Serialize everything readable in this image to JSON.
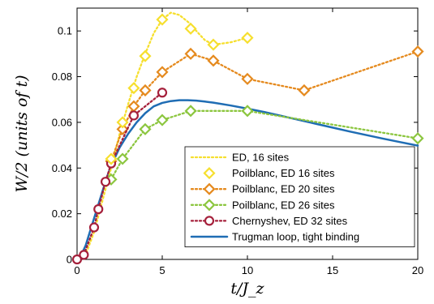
{
  "chart_data": {
    "type": "line",
    "title": "",
    "xlabel": "t/J_z",
    "ylabel": "W/2 (units of t)",
    "xlim": [
      0,
      20
    ],
    "ylim": [
      0,
      0.11
    ],
    "xticks": [
      0,
      5,
      10,
      15,
      20
    ],
    "yticks": [
      0,
      0.02,
      0.04,
      0.06,
      0.08,
      0.1
    ],
    "xtick_labels": [
      "0",
      "5",
      "10",
      "15",
      "20"
    ],
    "ytick_labels": [
      "0",
      "0.02",
      "0.04",
      "0.06",
      "0.08",
      "0.1"
    ],
    "grid": false,
    "legend_position": "bottom-right",
    "series": [
      {
        "name": "ED, 16 sites",
        "style": "dotted",
        "marker": "none",
        "color": "#f6df2e",
        "x": [
          0,
          0.5,
          1,
          1.5,
          2,
          2.5,
          3,
          3.5,
          4,
          4.5,
          5,
          5.5,
          6,
          6.67,
          7,
          7.5,
          8,
          9,
          10
        ],
        "y": [
          0,
          0.002,
          0.012,
          0.026,
          0.04,
          0.055,
          0.068,
          0.08,
          0.09,
          0.099,
          0.105,
          0.108,
          0.107,
          0.103,
          0.1,
          0.096,
          0.094,
          0.095,
          0.097
        ]
      },
      {
        "name": "Poilblanc, ED 16 sites",
        "style": "none",
        "marker": "diamond",
        "color": "#f6df2e",
        "x": [
          2,
          2.67,
          3.33,
          4,
          5,
          6.67,
          8,
          10
        ],
        "y": [
          0.044,
          0.06,
          0.075,
          0.089,
          0.105,
          0.101,
          0.094,
          0.097
        ]
      },
      {
        "name": "Poilblanc, ED 20 sites",
        "style": "dotted",
        "marker": "diamond",
        "color": "#e58a1e",
        "x": [
          2,
          2.67,
          3.33,
          4,
          5,
          6.67,
          8,
          10,
          13.33,
          20
        ],
        "y": [
          0.043,
          0.057,
          0.067,
          0.074,
          0.082,
          0.09,
          0.087,
          0.079,
          0.074,
          0.091
        ]
      },
      {
        "name": "Poilblanc, ED 26 sites",
        "style": "dotted",
        "marker": "diamond",
        "color": "#8cc63f",
        "x": [
          2,
          2.67,
          4,
          5,
          6.67,
          10,
          20
        ],
        "y": [
          0.035,
          0.044,
          0.057,
          0.061,
          0.065,
          0.065,
          0.053
        ]
      },
      {
        "name": "Chernyshev, ED 32 sites",
        "style": "dotted",
        "marker": "circle",
        "color": "#a5203b",
        "x": [
          0,
          0.4,
          1,
          1.25,
          1.67,
          2,
          3.33,
          5
        ],
        "y": [
          0,
          0.002,
          0.014,
          0.022,
          0.034,
          0.042,
          0.063,
          0.073
        ]
      },
      {
        "name": "Trugman loop, tight binding",
        "style": "solid",
        "marker": "none",
        "color": "#1f6db4",
        "x": [
          0,
          0.25,
          0.5,
          0.75,
          1,
          1.25,
          1.5,
          1.75,
          2,
          2.5,
          3,
          3.5,
          4,
          4.5,
          5,
          5.5,
          6,
          6.5,
          7,
          7.5,
          8,
          9,
          10,
          11,
          12,
          13,
          14,
          15,
          16,
          17,
          18,
          19,
          20
        ],
        "y": [
          0,
          0.002,
          0.006,
          0.012,
          0.018,
          0.024,
          0.03,
          0.036,
          0.041,
          0.049,
          0.055,
          0.06,
          0.064,
          0.067,
          0.0685,
          0.0693,
          0.0697,
          0.0697,
          0.0695,
          0.0691,
          0.0686,
          0.0674,
          0.066,
          0.0645,
          0.0628,
          0.0611,
          0.0594,
          0.0577,
          0.056,
          0.0544,
          0.0528,
          0.0513,
          0.0498
        ]
      }
    ]
  }
}
